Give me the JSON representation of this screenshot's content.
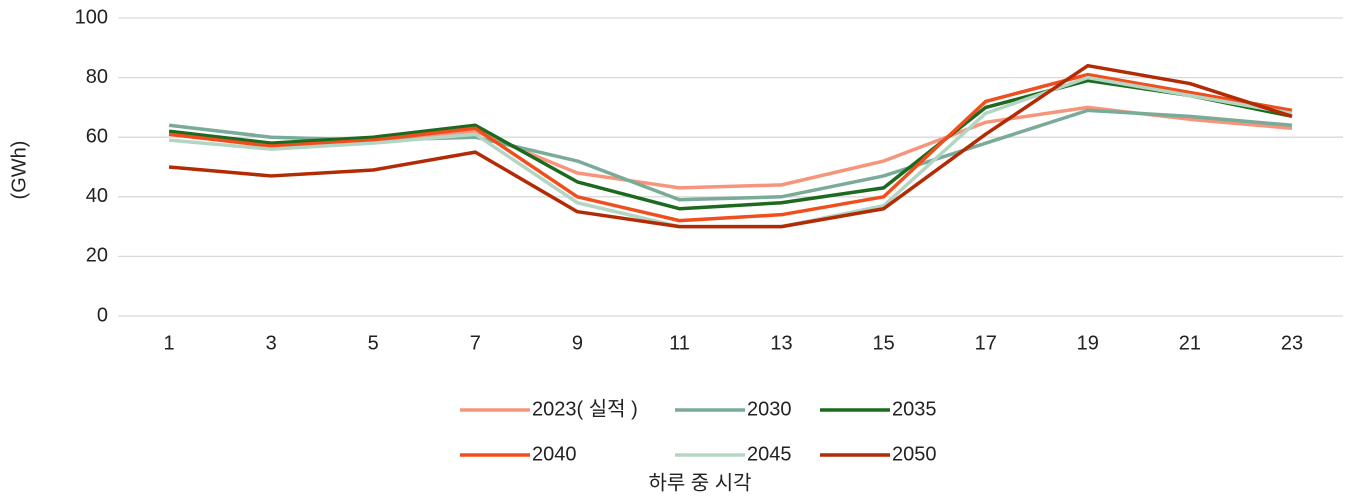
{
  "chart_data": {
    "type": "line",
    "y_label": "(GWh)",
    "x_label": "하루 중 시각",
    "categories": [
      "1",
      "3",
      "5",
      "7",
      "9",
      "11",
      "13",
      "15",
      "17",
      "19",
      "21",
      "23"
    ],
    "series": [
      {
        "name": "2023( 실적 )",
        "color": "#f7957c",
        "values": [
          61,
          57,
          59,
          62,
          48,
          43,
          44,
          52,
          65,
          70,
          66,
          63
        ]
      },
      {
        "name": "2030",
        "color": "#79ab98",
        "values": [
          64,
          60,
          59,
          60,
          52,
          39,
          40,
          47,
          58,
          69,
          67,
          64
        ]
      },
      {
        "name": "2035",
        "color": "#1c6a1f",
        "values": [
          62,
          58,
          60,
          64,
          45,
          36,
          38,
          43,
          70,
          79,
          74,
          67
        ]
      },
      {
        "name": "2040",
        "color": "#f04f1d",
        "values": [
          61,
          57,
          59,
          63,
          40,
          32,
          34,
          40,
          72,
          81,
          75,
          69
        ]
      },
      {
        "name": "2045",
        "color": "#b3d5c3",
        "values": [
          59,
          56,
          58,
          61,
          38,
          30,
          30,
          37,
          68,
          80,
          74,
          68
        ]
      },
      {
        "name": "2050",
        "color": "#b22b05",
        "values": [
          50,
          47,
          49,
          55,
          35,
          30,
          30,
          36,
          61,
          84,
          78,
          67
        ]
      }
    ],
    "ylim": [
      0,
      100
    ],
    "yticks": [
      0,
      20,
      40,
      60,
      80,
      100
    ],
    "grid": true,
    "legend": "bottom"
  }
}
